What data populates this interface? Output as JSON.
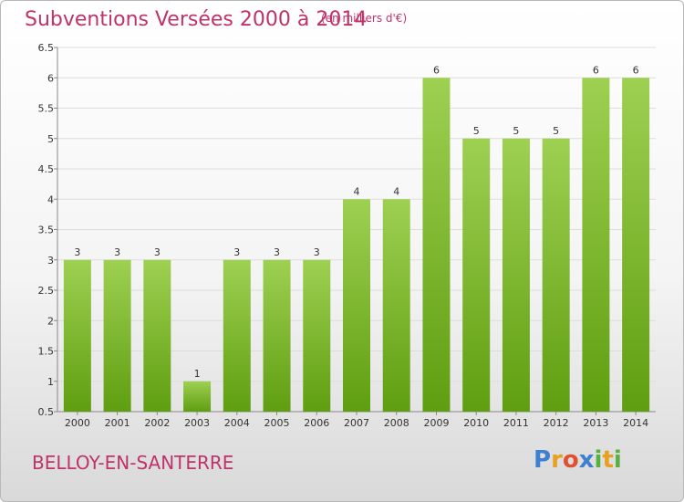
{
  "header": {
    "title": "Subventions Versées 2000 à 2014",
    "unit": "(en milliers d'€)"
  },
  "footer": {
    "city": "BELLOY-EN-SANTERRE",
    "logo": [
      "P",
      "r",
      "o",
      "x",
      "i",
      "t",
      "i"
    ]
  },
  "colors": {
    "title": "#c0336a",
    "bar_light": "#9ed052",
    "bar_dark": "#5f9e10",
    "logo": [
      "#3f7fd0",
      "#e8a020",
      "#e05030",
      "#3f7fd0",
      "#58b040",
      "#e8a020",
      "#58b040"
    ]
  },
  "chart_data": {
    "type": "bar",
    "categories": [
      "2000",
      "2001",
      "2002",
      "2003",
      "2004",
      "2005",
      "2006",
      "2007",
      "2008",
      "2009",
      "2010",
      "2011",
      "2012",
      "2013",
      "2014"
    ],
    "values": [
      3,
      3,
      3,
      1,
      3,
      3,
      3,
      4,
      4,
      6,
      5,
      5,
      5,
      6,
      6
    ],
    "data_labels": [
      "3",
      "3",
      "3",
      "1",
      "3",
      "3",
      "3",
      "4",
      "4",
      "6",
      "5",
      "5",
      "5",
      "6",
      "6"
    ],
    "yticks": [
      "0.5",
      "1",
      "1.5",
      "2",
      "2.5",
      "3",
      "3.5",
      "4",
      "4.5",
      "5",
      "5.5",
      "6",
      "6.5"
    ],
    "ylim": [
      0.5,
      6.5
    ],
    "grid": true
  }
}
